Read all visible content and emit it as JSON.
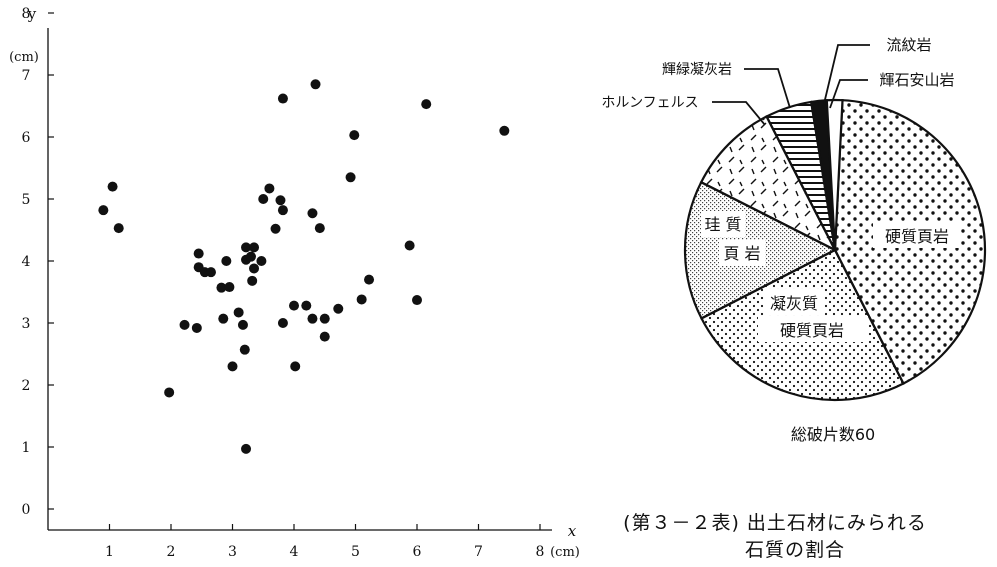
{
  "scatter": {
    "chart_data": {
      "type": "scatter",
      "xlabel": "x",
      "ylabel": "y",
      "x_unit": "(cm)",
      "y_unit": "(cm)",
      "xlim": [
        0,
        8
      ],
      "ylim": [
        0,
        8
      ],
      "x_ticks": [
        "1",
        "2",
        "3",
        "4",
        "5",
        "6",
        "7",
        "8"
      ],
      "y_ticks": [
        "0",
        "1",
        "2",
        "3",
        "4",
        "5",
        "6",
        "7",
        "8"
      ],
      "grid": false,
      "points": [
        [
          0.9,
          4.82
        ],
        [
          1.05,
          5.2
        ],
        [
          1.15,
          4.53
        ],
        [
          1.97,
          1.88
        ],
        [
          2.22,
          2.97
        ],
        [
          2.42,
          2.92
        ],
        [
          2.45,
          4.12
        ],
        [
          2.45,
          3.9
        ],
        [
          2.55,
          3.82
        ],
        [
          2.65,
          3.82
        ],
        [
          2.82,
          3.57
        ],
        [
          2.85,
          3.07
        ],
        [
          2.9,
          4.0
        ],
        [
          2.95,
          3.58
        ],
        [
          3.0,
          2.3
        ],
        [
          3.1,
          3.17
        ],
        [
          3.17,
          2.97
        ],
        [
          3.2,
          2.57
        ],
        [
          3.22,
          0.97
        ],
        [
          3.22,
          4.22
        ],
        [
          3.22,
          4.02
        ],
        [
          3.3,
          4.07
        ],
        [
          3.32,
          3.68
        ],
        [
          3.35,
          4.22
        ],
        [
          3.35,
          3.88
        ],
        [
          3.47,
          4.0
        ],
        [
          3.5,
          5.0
        ],
        [
          3.6,
          5.17
        ],
        [
          3.7,
          4.52
        ],
        [
          3.78,
          4.98
        ],
        [
          3.82,
          6.62
        ],
        [
          3.82,
          4.82
        ],
        [
          3.82,
          3.0
        ],
        [
          4.0,
          3.28
        ],
        [
          4.02,
          2.3
        ],
        [
          4.2,
          3.28
        ],
        [
          4.3,
          3.07
        ],
        [
          4.3,
          4.77
        ],
        [
          4.35,
          6.85
        ],
        [
          4.42,
          4.53
        ],
        [
          4.5,
          2.78
        ],
        [
          4.5,
          3.07
        ],
        [
          4.72,
          3.23
        ],
        [
          4.92,
          5.35
        ],
        [
          4.98,
          6.03
        ],
        [
          5.1,
          3.38
        ],
        [
          5.22,
          3.7
        ],
        [
          5.88,
          4.25
        ],
        [
          6.0,
          3.37
        ],
        [
          6.15,
          6.53
        ],
        [
          7.42,
          6.1
        ]
      ]
    }
  },
  "pie": {
    "chart_data": {
      "type": "pie",
      "total_label": "総破片数60",
      "slices": [
        {
          "label": "硬質頁岩",
          "value": 25,
          "pattern": "coarse-dots"
        },
        {
          "label": "凝灰質硬質頁岩",
          "label_lines": [
            "凝灰質",
            "硬質頁岩"
          ],
          "value": 15,
          "pattern": "fine-dots"
        },
        {
          "label": "珪質頁岩",
          "label_lines": [
            "珪 質",
            "頁 岩"
          ],
          "value": 9,
          "pattern": "stipple"
        },
        {
          "label": "ホルンフェルス",
          "value": 6,
          "pattern": "dashes"
        },
        {
          "label": "輝緑凝灰岩",
          "value": 3,
          "pattern": "horizontal-hatch"
        },
        {
          "label": "流紋岩",
          "value": 1,
          "pattern": "solid-black"
        },
        {
          "label": "輝石安山岩",
          "value": 1,
          "pattern": "blank"
        }
      ]
    }
  },
  "caption": {
    "line1": "(第３－２表) 出土石材にみられる",
    "line2": "石質の割合"
  }
}
